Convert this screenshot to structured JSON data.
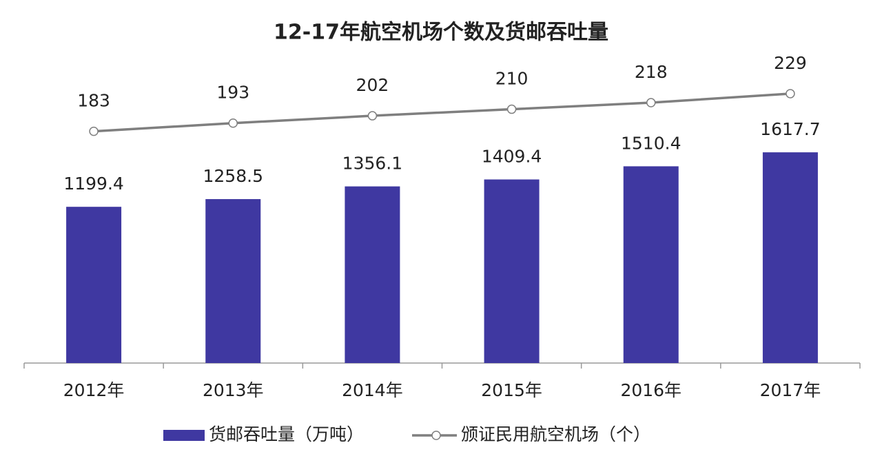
{
  "chart_data": {
    "type": "combo",
    "title": "12-17年航空机场个数及货邮吞吐量",
    "categories": [
      "2012年",
      "2013年",
      "2014年",
      "2015年",
      "2016年",
      "2017年"
    ],
    "series": [
      {
        "name": "货邮吞吐量（万吨）",
        "type": "bar",
        "color": "#3f38a1",
        "values": [
          1199.4,
          1258.5,
          1356.1,
          1409.4,
          1510.4,
          1617.7
        ]
      },
      {
        "name": "颁证民用航空机场（个）",
        "type": "line",
        "axis": "y2",
        "color": "#7f7f7f",
        "values": [
          183,
          193,
          202,
          210,
          218,
          229
        ]
      }
    ],
    "ylim": [
      0,
      2200
    ],
    "y2lim": [
      -100,
      250
    ],
    "legend": "bottom"
  }
}
